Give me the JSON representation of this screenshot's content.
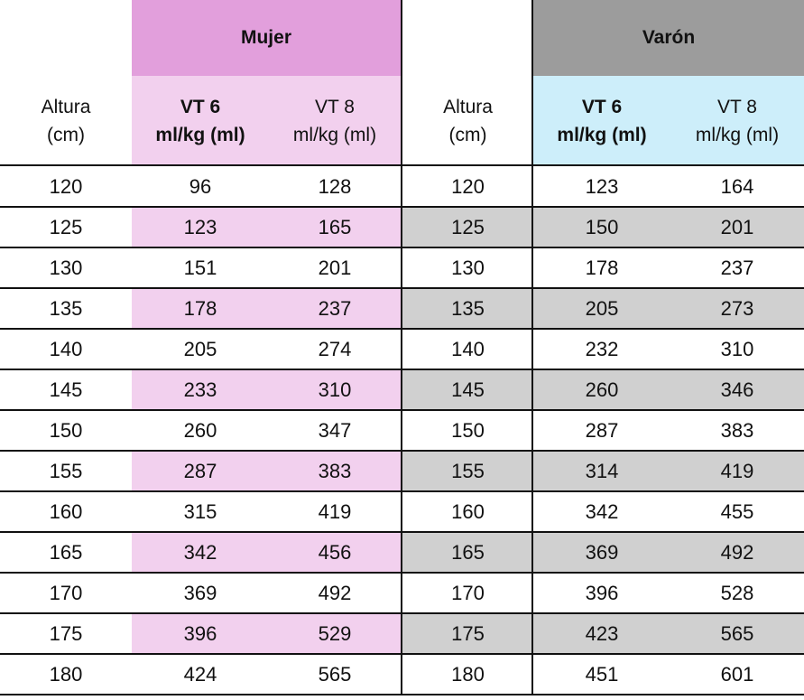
{
  "colors": {
    "female_header": "#e29fdc",
    "female_subheader": "#f2d0ee",
    "female_row_alt": "#f2d0ee",
    "male_header": "#9c9c9c",
    "male_subheader": "#cdeefa",
    "male_row_alt": "#d0d0d0",
    "border": "#111111"
  },
  "groups": {
    "female": "Mujer",
    "male": "Varón"
  },
  "columns": {
    "height_line1": "Altura",
    "height_line2": "(cm)",
    "vt6_line1": "VT 6",
    "vt6_line2": "ml/kg (ml)",
    "vt8_line1": "VT 8",
    "vt8_line2": "ml/kg (ml)"
  },
  "rows": [
    [
      "120",
      "96",
      "128",
      "120",
      "123",
      "164"
    ],
    [
      "125",
      "123",
      "165",
      "125",
      "150",
      "201"
    ],
    [
      "130",
      "151",
      "201",
      "130",
      "178",
      "237"
    ],
    [
      "135",
      "178",
      "237",
      "135",
      "205",
      "273"
    ],
    [
      "140",
      "205",
      "274",
      "140",
      "232",
      "310"
    ],
    [
      "145",
      "233",
      "310",
      "145",
      "260",
      "346"
    ],
    [
      "150",
      "260",
      "347",
      "150",
      "287",
      "383"
    ],
    [
      "155",
      "287",
      "383",
      "155",
      "314",
      "419"
    ],
    [
      "160",
      "315",
      "419",
      "160",
      "342",
      "455"
    ],
    [
      "165",
      "342",
      "456",
      "165",
      "369",
      "492"
    ],
    [
      "170",
      "369",
      "492",
      "170",
      "396",
      "528"
    ],
    [
      "175",
      "396",
      "529",
      "175",
      "423",
      "565"
    ],
    [
      "180",
      "424",
      "565",
      "180",
      "451",
      "601"
    ]
  ]
}
